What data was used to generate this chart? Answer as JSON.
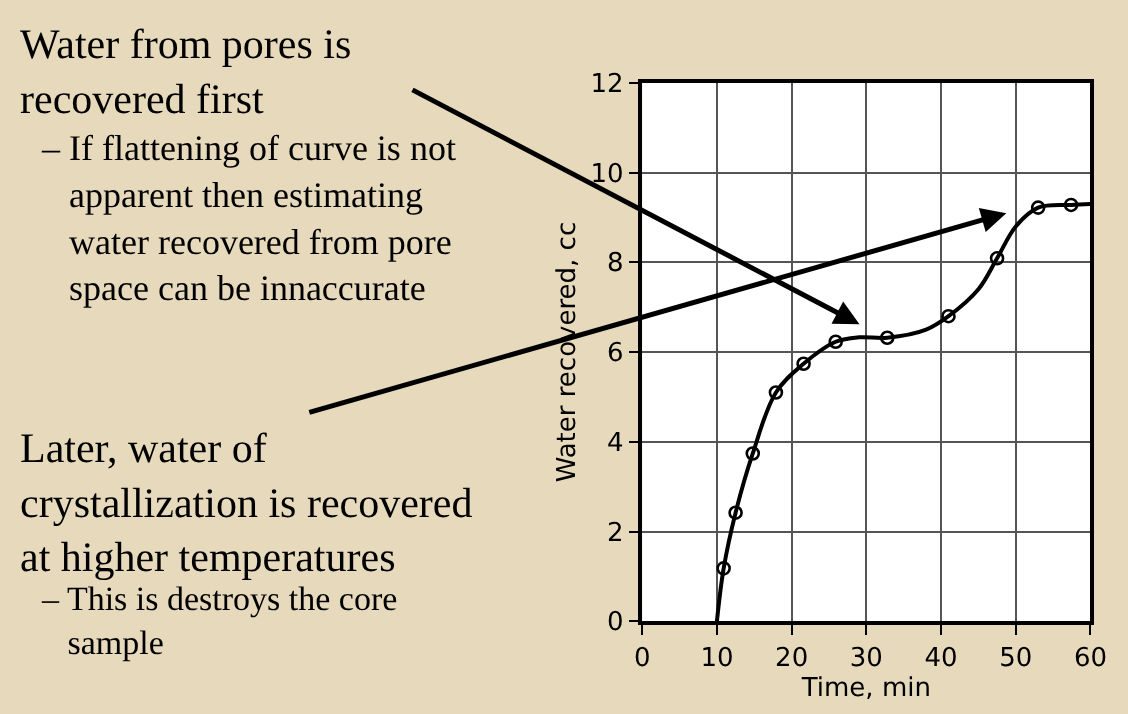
{
  "chart_data": {
    "type": "line",
    "xlabel": "Time, min",
    "ylabel": "Water recovered, cc",
    "xlim": [
      0,
      60
    ],
    "xticks": [
      0,
      10,
      20,
      30,
      40,
      50,
      60
    ],
    "ylim": [
      0,
      12
    ],
    "yticks": [
      0,
      2,
      4,
      6,
      8,
      10,
      12
    ],
    "grid": true,
    "legend": false,
    "series": [
      {
        "color": "#000000",
        "marker": "none",
        "x": [
          10,
          10.9,
          12.5,
          14.8,
          17.9,
          21.6,
          25.9,
          29,
          32.8,
          38,
          41,
          45,
          47.5,
          50,
          53,
          57.4,
          60
        ],
        "values": [
          0,
          1.18,
          2.42,
          3.74,
          5.1,
          5.74,
          6.23,
          6.33,
          6.32,
          6.5,
          6.8,
          7.4,
          8.09,
          8.8,
          9.22,
          9.28,
          9.3
        ]
      },
      {
        "type": "scatter",
        "color": "#000000",
        "marker": "circle",
        "x": [
          10.9,
          12.5,
          14.8,
          17.9,
          21.6,
          25.9,
          32.8,
          41,
          47.5,
          53,
          57.4
        ],
        "values": [
          1.18,
          2.42,
          3.74,
          5.1,
          5.74,
          6.23,
          6.32,
          6.8,
          8.09,
          9.22,
          9.28
        ]
      }
    ],
    "annotations": [
      "Water from pores is\nrecovered first",
      "– If flattening of curve is not\n   apparent then estimating\n   water recovered from pore\n   space can be innaccurate",
      "Later, water of\ncrystallization is recovered\nat higher temperatures",
      "– This is destroys the core\n   sample"
    ]
  }
}
